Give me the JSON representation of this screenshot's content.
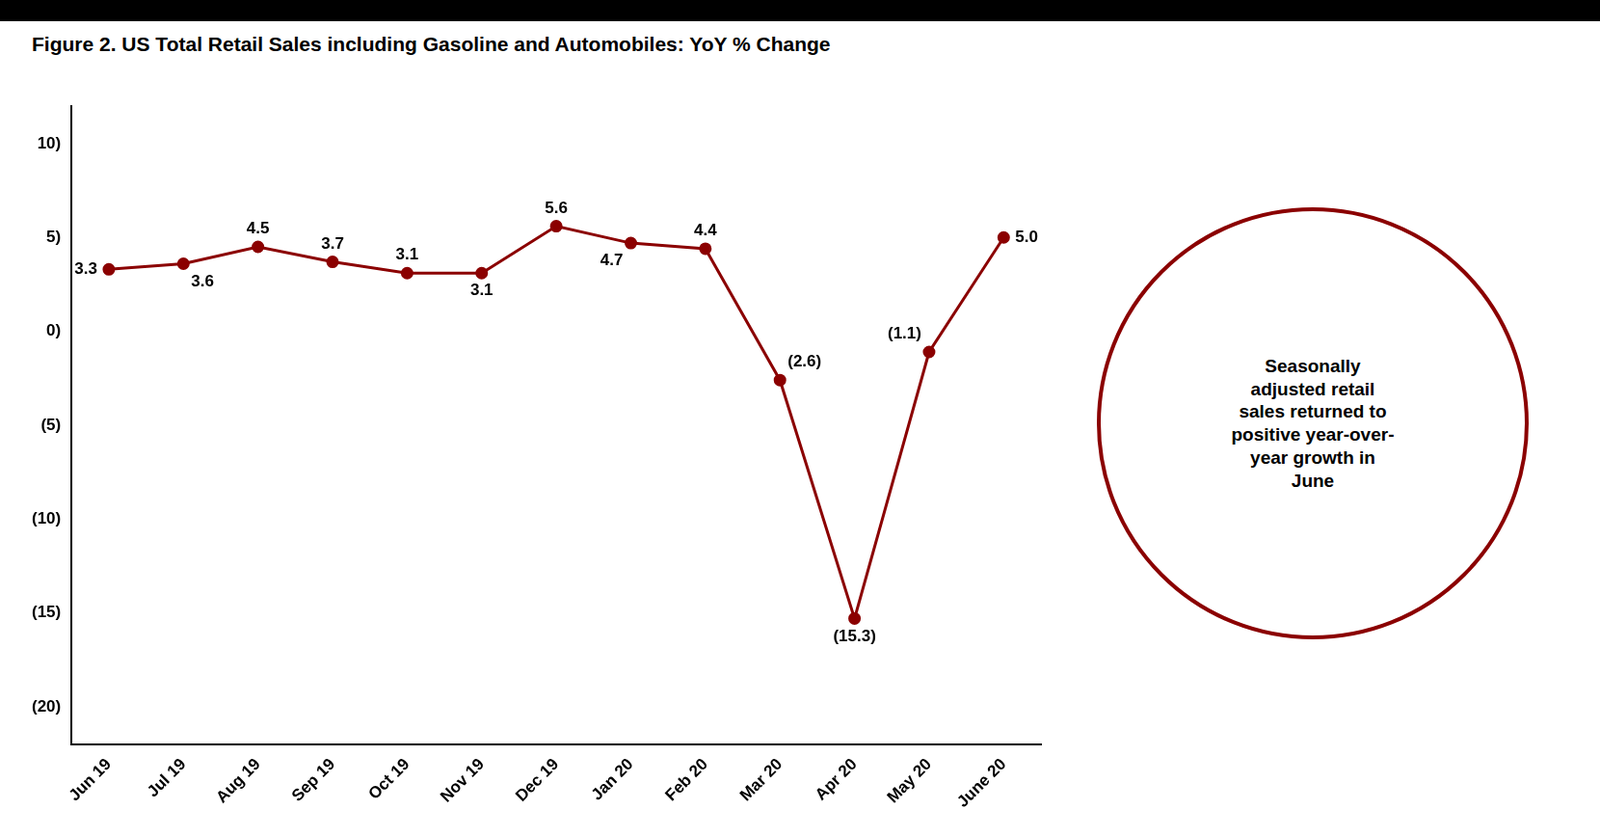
{
  "chart_data": {
    "type": "line",
    "title": "Figure 2. US Total Retail Sales including Gasoline and Automobiles: YoY % Change",
    "categories": [
      "Jun 19",
      "Jul 19",
      "Aug 19",
      "Sep 19",
      "Oct 19",
      "Nov 19",
      "Dec 19",
      "Jan 20",
      "Feb 20",
      "Mar 20",
      "Apr 20",
      "May 20",
      "June 20"
    ],
    "values": [
      3.3,
      3.6,
      4.5,
      3.7,
      3.1,
      3.1,
      5.6,
      4.7,
      4.4,
      -2.6,
      -15.3,
      -1.1,
      5.0
    ],
    "value_labels": [
      "3.3",
      "3.6",
      "4.5",
      "3.7",
      "3.1",
      "3.1",
      "5.6",
      "4.7",
      "4.4",
      "(2.6)",
      "(15.3)",
      "(1.1)",
      "5.0"
    ],
    "data_labels": true,
    "color": "#8B0000",
    "marker": "circle",
    "line_style": "solid",
    "ylim": [
      -22,
      12
    ],
    "yticks": [
      {
        "value": -20,
        "label": "(20)"
      },
      {
        "value": -15,
        "label": "(15)"
      },
      {
        "value": -10,
        "label": "(10)"
      },
      {
        "value": -5,
        "label": "(5)"
      },
      {
        "value": 0,
        "label": "0)"
      },
      {
        "value": 5,
        "label": "5)"
      },
      {
        "value": 10,
        "label": "10)"
      }
    ],
    "grid": false,
    "annotations": [
      "Seasonally\nadjusted retail\nsales returned to\npositive year-over-\nyear growth in\nJune"
    ]
  }
}
